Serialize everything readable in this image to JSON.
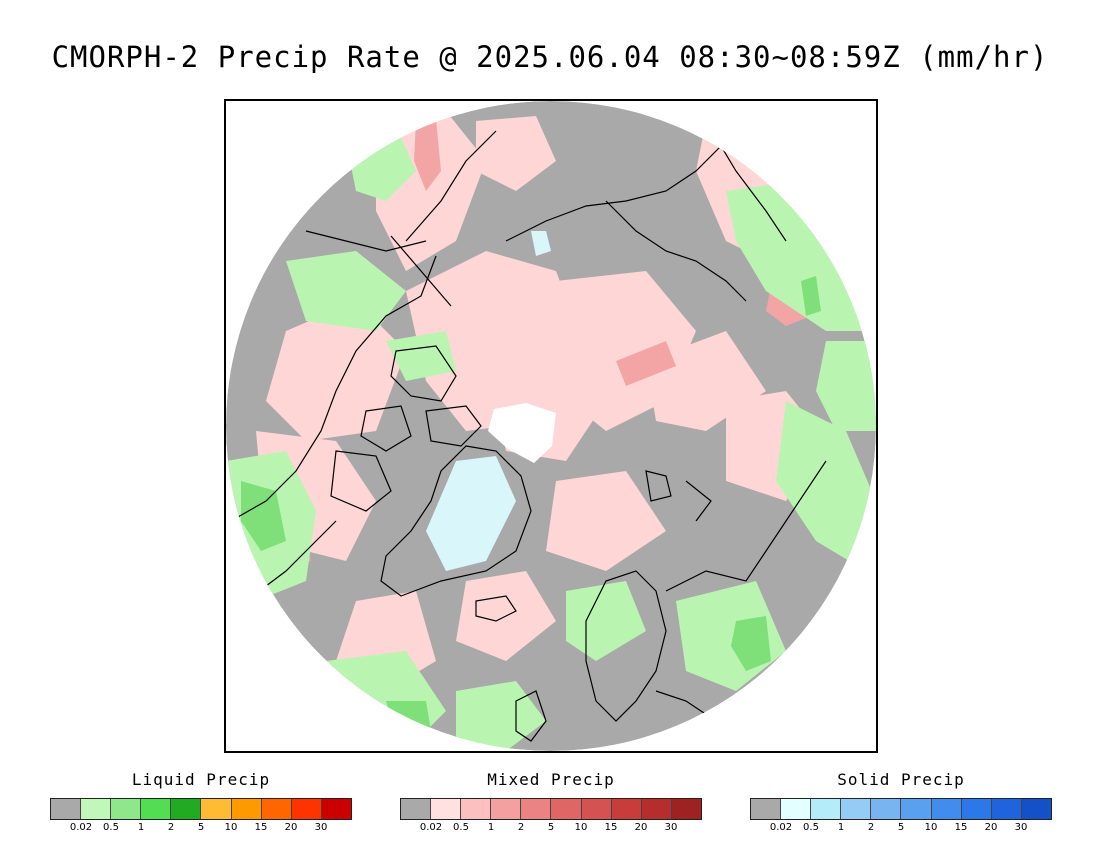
{
  "title": "CMORPH-2 Precip Rate @ 2025.06.04 08:30~08:59Z (mm/hr)",
  "map": {
    "projection": "polar-stereographic-north",
    "colors": {
      "background_no_precip": "#a9a9a9",
      "ice_cap_no_data": "#ffffff",
      "mixed_light": "#ffd6d6",
      "mixed_mid": "#f3a5a5",
      "mixed_heavy": "#d96a6a",
      "liquid_light": "#b9f5b0",
      "liquid_mid": "#7fe07a",
      "liquid_heavy": "#2fb02f",
      "solid_light": "#d9f6fb",
      "coastline": "#000000"
    }
  },
  "legends": [
    {
      "title": "Liquid Precip",
      "colors": [
        "#a9a9a9",
        "#c2f7bc",
        "#8ee88b",
        "#52dd52",
        "#22aa22",
        "#ffbb33",
        "#ff9900",
        "#ff6600",
        "#ff3300",
        "#cc0000"
      ],
      "ticks": [
        "0.02",
        "0.5",
        "1",
        "2",
        "5",
        "10",
        "15",
        "20",
        "30"
      ]
    },
    {
      "title": "Mixed Precip",
      "colors": [
        "#a9a9a9",
        "#ffe1e1",
        "#fcc0c0",
        "#f5a0a0",
        "#eb8383",
        "#e06666",
        "#d55252",
        "#c83c3c",
        "#b52d2d",
        "#9e2222"
      ],
      "ticks": [
        "0.02",
        "0.5",
        "1",
        "2",
        "5",
        "10",
        "15",
        "20",
        "30"
      ]
    },
    {
      "title": "Solid Precip",
      "colors": [
        "#a9a9a9",
        "#e3ffff",
        "#b4ecfa",
        "#94ccf5",
        "#78b4f2",
        "#5aa0f0",
        "#428cee",
        "#2d78e8",
        "#1f64dc",
        "#1450c8"
      ],
      "ticks": [
        "0.02",
        "0.5",
        "1",
        "2",
        "5",
        "10",
        "15",
        "20",
        "30"
      ]
    }
  ]
}
